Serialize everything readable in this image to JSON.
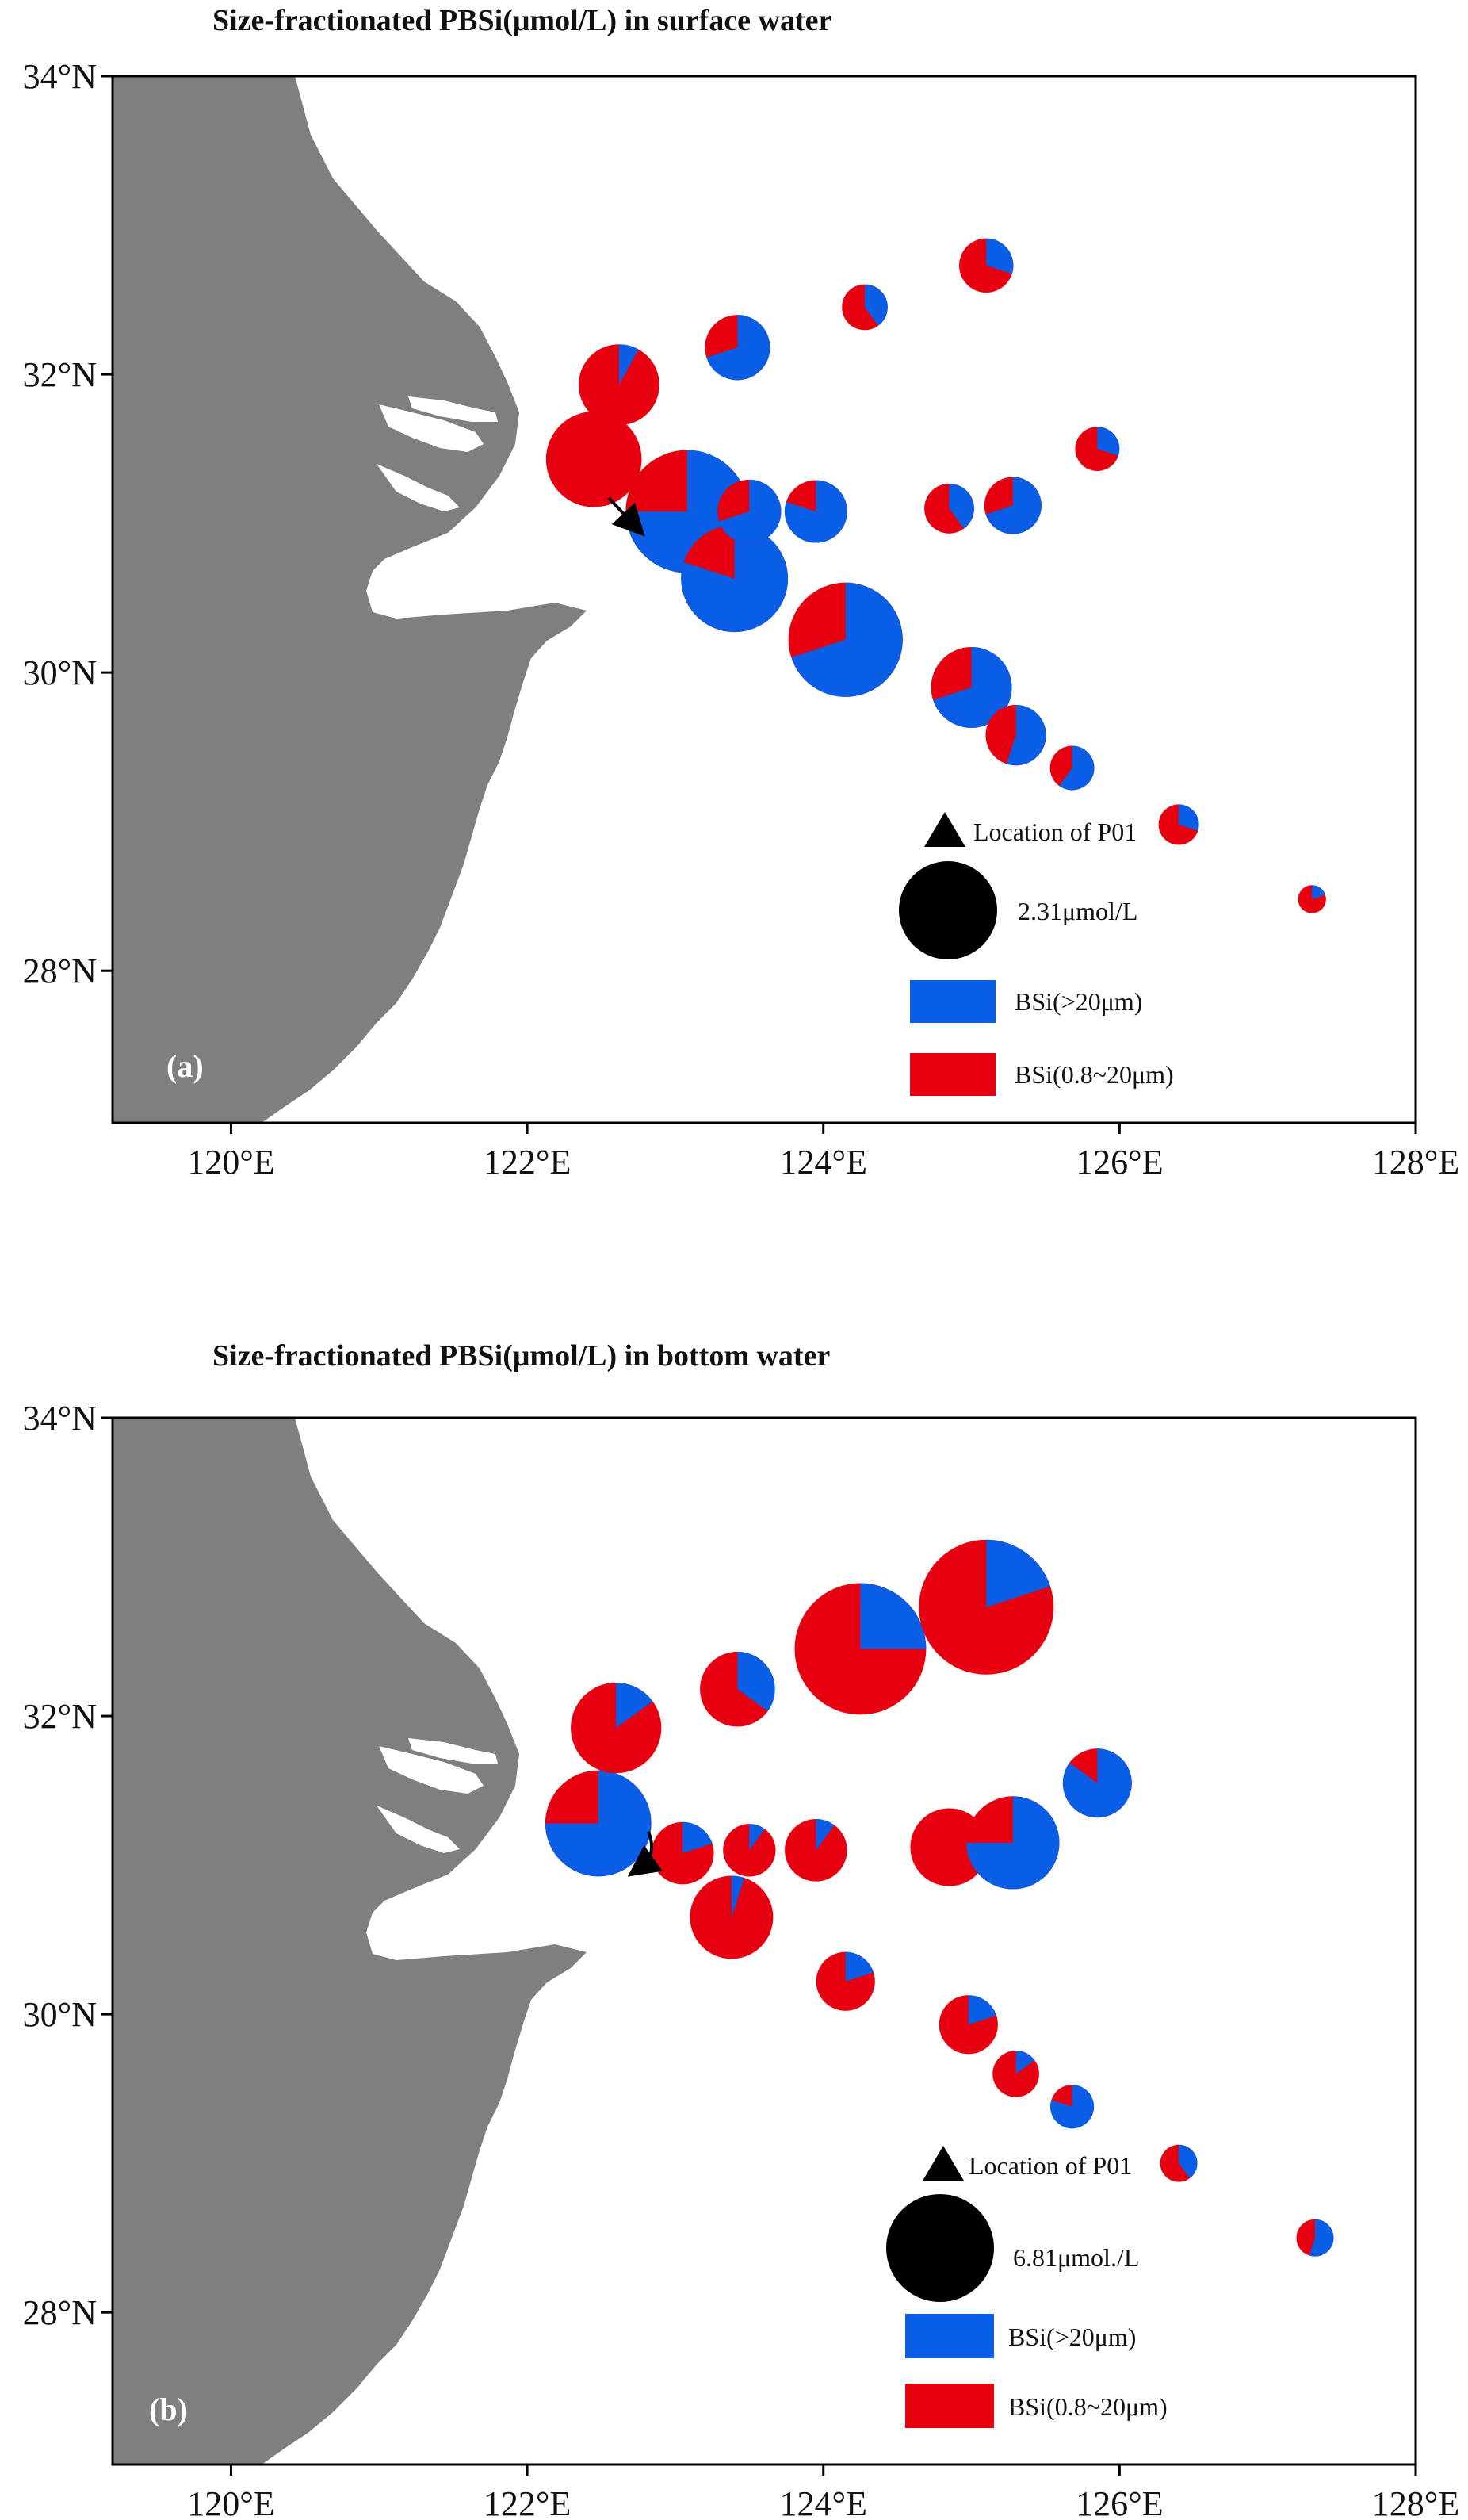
{
  "colors": {
    "land": "#7f7f7f",
    "large_fraction": "#0a5ee6",
    "small_fraction": "#e60010",
    "frame": "#000000"
  },
  "lon_ticks": [
    "120°E",
    "122°E",
    "124°E",
    "126°E",
    "128°E"
  ],
  "lat_ticks": [
    "34°N",
    "32°N",
    "30°N",
    "28°N"
  ],
  "panels": [
    {
      "label": "(a)",
      "title": "Size-fractionated PBSi(μmol/L) in surface water",
      "legend": {
        "marker_label": "Location of P01",
        "scale_label": "2.31μmol/L",
        "large_label": "BSi(>20μm)",
        "small_label": "BSi(0.8~20μm)"
      },
      "stations": [
        {
          "lon": 122.45,
          "lat": 31.43,
          "size": 1.4,
          "large_frac": 0.0
        },
        {
          "lon": 122.62,
          "lat": 31.93,
          "size": 1.0,
          "large_frac": 0.08
        },
        {
          "lon": 123.08,
          "lat": 31.08,
          "size": 2.31,
          "large_frac": 0.75
        },
        {
          "lon": 123.4,
          "lat": 30.63,
          "size": 1.75,
          "large_frac": 0.8
        },
        {
          "lon": 123.42,
          "lat": 32.18,
          "size": 0.65,
          "large_frac": 0.7
        },
        {
          "lon": 123.5,
          "lat": 31.08,
          "size": 0.62,
          "large_frac": 0.7
        },
        {
          "lon": 123.95,
          "lat": 31.08,
          "size": 0.6,
          "large_frac": 0.8
        },
        {
          "lon": 124.15,
          "lat": 30.22,
          "size": 2.0,
          "large_frac": 0.7
        },
        {
          "lon": 124.28,
          "lat": 32.45,
          "size": 0.32,
          "large_frac": 0.4
        },
        {
          "lon": 124.85,
          "lat": 31.1,
          "size": 0.38,
          "large_frac": 0.4
        },
        {
          "lon": 125.0,
          "lat": 29.9,
          "size": 1.0,
          "large_frac": 0.7
        },
        {
          "lon": 125.1,
          "lat": 32.73,
          "size": 0.45,
          "large_frac": 0.3
        },
        {
          "lon": 125.28,
          "lat": 31.12,
          "size": 0.5,
          "large_frac": 0.7
        },
        {
          "lon": 125.3,
          "lat": 29.58,
          "size": 0.56,
          "large_frac": 0.55
        },
        {
          "lon": 125.68,
          "lat": 29.36,
          "size": 0.3,
          "large_frac": 0.6
        },
        {
          "lon": 125.85,
          "lat": 31.5,
          "size": 0.3,
          "large_frac": 0.3
        },
        {
          "lon": 126.4,
          "lat": 28.98,
          "size": 0.25,
          "large_frac": 0.3
        },
        {
          "lon": 127.3,
          "lat": 28.48,
          "size": 0.12,
          "large_frac": 0.2
        }
      ]
    },
    {
      "label": "(b)",
      "title": "Size-fractionated PBSi(μmol/L) in bottom water",
      "legend": {
        "marker_label": "Location of P01",
        "scale_label": "6.81μmol./L",
        "large_label": "BSi(>20μm)",
        "small_label": "BSi(0.8~20μm)"
      },
      "stations": [
        {
          "lon": 122.48,
          "lat": 31.28,
          "size": 1.3,
          "large_frac": 0.75
        },
        {
          "lon": 122.6,
          "lat": 31.92,
          "size": 0.95,
          "large_frac": 0.15
        },
        {
          "lon": 123.05,
          "lat": 31.08,
          "size": 0.45,
          "large_frac": 0.2
        },
        {
          "lon": 123.38,
          "lat": 30.65,
          "size": 0.8,
          "large_frac": 0.05
        },
        {
          "lon": 123.42,
          "lat": 32.18,
          "size": 0.65,
          "large_frac": 0.35
        },
        {
          "lon": 123.5,
          "lat": 31.1,
          "size": 0.32,
          "large_frac": 0.1
        },
        {
          "lon": 123.95,
          "lat": 31.1,
          "size": 0.45,
          "large_frac": 0.1
        },
        {
          "lon": 124.15,
          "lat": 30.22,
          "size": 0.4,
          "large_frac": 0.2
        },
        {
          "lon": 124.25,
          "lat": 32.45,
          "size": 2.0,
          "large_frac": 0.25
        },
        {
          "lon": 124.85,
          "lat": 31.12,
          "size": 0.7,
          "large_frac": 0.0
        },
        {
          "lon": 124.98,
          "lat": 29.93,
          "size": 0.4,
          "large_frac": 0.2
        },
        {
          "lon": 125.1,
          "lat": 32.73,
          "size": 2.1,
          "large_frac": 0.2
        },
        {
          "lon": 125.28,
          "lat": 31.15,
          "size": 1.0,
          "large_frac": 0.75
        },
        {
          "lon": 125.3,
          "lat": 29.6,
          "size": 0.25,
          "large_frac": 0.15
        },
        {
          "lon": 125.68,
          "lat": 29.38,
          "size": 0.22,
          "large_frac": 0.8
        },
        {
          "lon": 125.85,
          "lat": 31.55,
          "size": 0.55,
          "large_frac": 0.85
        },
        {
          "lon": 126.4,
          "lat": 29.0,
          "size": 0.16,
          "large_frac": 0.4
        },
        {
          "lon": 127.32,
          "lat": 28.5,
          "size": 0.16,
          "large_frac": 0.55
        }
      ]
    }
  ]
}
